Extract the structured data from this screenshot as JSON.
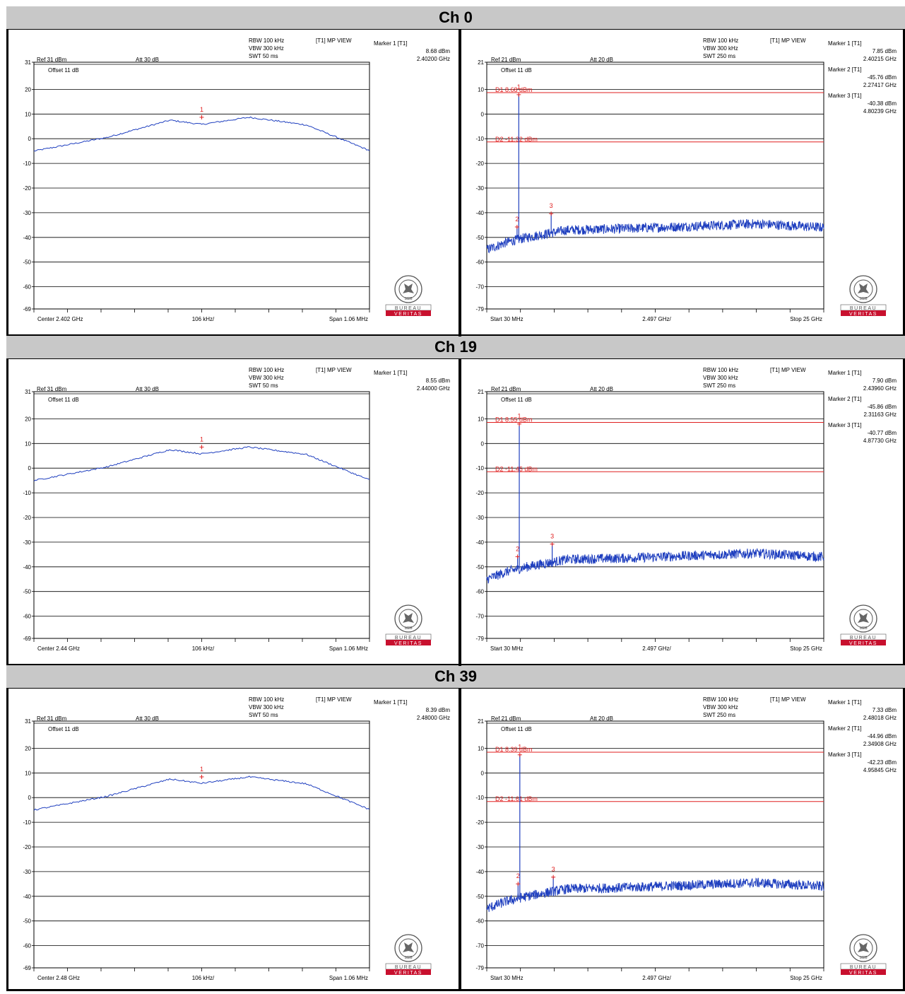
{
  "colors": {
    "trace": "#1f3fbf",
    "marker": "#e02020",
    "display_line": "#e02020",
    "header_bg": "#c8c8c8",
    "logo_red": "#c8102e"
  },
  "logo": {
    "text_top": "BUREAU",
    "text_bottom": "VERITAS",
    "year": "1828",
    "ring_text": "BUREAU VERITAS"
  },
  "rows": [
    {
      "title": "Ch 0"
    },
    {
      "title": "Ch 19"
    },
    {
      "title": "Ch 39"
    }
  ],
  "chart_data": [
    {
      "type": "line",
      "row": 0,
      "side": "left",
      "settings": {
        "rbw": "RBW 100 kHz",
        "vbw": "VBW 300 kHz",
        "swt": "SWT 50 ms",
        "view": "[T1] MP VIEW",
        "ref": "Ref 31 dBm",
        "att": "Att  30 dB",
        "offset": "Offset 11 dB"
      },
      "markers_text": [
        {
          "label": "Marker 1 [T1]",
          "level": "8.68 dBm",
          "freq": "2.40200 GHz"
        }
      ],
      "x_labels": {
        "left": "Center 2.402 GHz",
        "center": "106 kHz/",
        "right": "Span 1.06 MHz"
      },
      "y_ticks": [
        "31",
        "20",
        "10",
        "0",
        "-10",
        "-20",
        "-30",
        "-40",
        "-50",
        "-60",
        "-69"
      ],
      "y_tick_values": [
        31,
        20,
        10,
        0,
        -10,
        -20,
        -30,
        -40,
        -50,
        -60,
        -69
      ],
      "ylim": [
        -69,
        31
      ],
      "xlim": [
        2.40147,
        2.40253
      ],
      "grid": true,
      "series": [
        {
          "x": [
            2.40147,
            2.4017,
            2.4019,
            2.402,
            2.40215,
            2.40233,
            2.40253
          ],
          "y": [
            -5,
            0.5,
            7.5,
            5.8,
            8.68,
            5.6,
            -4.8
          ]
        }
      ],
      "plot_markers": [
        {
          "label": "1",
          "x": 2.402,
          "y": 8.68
        }
      ],
      "display_lines": []
    },
    {
      "type": "line",
      "row": 0,
      "side": "right",
      "settings": {
        "rbw": "RBW 100 kHz",
        "vbw": "VBW 300 kHz",
        "swt": "SWT 250 ms",
        "view": "[T1] MP VIEW",
        "ref": "Ref 21 dBm",
        "att": "Att  20 dB",
        "offset": "Offset 11 dB"
      },
      "markers_text": [
        {
          "label": "Marker 1 [T1]",
          "level": "7.85 dBm",
          "freq": "2.40215 GHz"
        },
        {
          "label": "Marker 2 [T1]",
          "level": "-45.76 dBm",
          "freq": "2.27417 GHz"
        },
        {
          "label": "Marker 3 [T1]",
          "level": "-40.38 dBm",
          "freq": "4.80239 GHz"
        }
      ],
      "x_labels": {
        "left": "Start 30 MHz",
        "center": "2.497 GHz/",
        "right": "Stop 25 GHz"
      },
      "y_ticks": [
        "21",
        "10",
        "0",
        "-10",
        "-20",
        "-30",
        "-40",
        "-50",
        "-60",
        "-70",
        "-79"
      ],
      "y_tick_values": [
        21,
        10,
        0,
        -10,
        -20,
        -30,
        -40,
        -50,
        -60,
        -70,
        -79
      ],
      "ylim": [
        -79,
        21
      ],
      "xlim": [
        0.03,
        25
      ],
      "grid": true,
      "noise_floor": {
        "x": [
          0.03,
          1.5,
          3,
          6,
          10,
          15,
          20,
          25
        ],
        "y": [
          -55,
          -52,
          -50,
          -47,
          -46.5,
          -45.5,
          -44.5,
          -46
        ]
      },
      "plot_markers": [
        {
          "label": "1",
          "x": 2.40215,
          "y": 7.85
        },
        {
          "label": "2",
          "x": 2.27417,
          "y": -45.76
        },
        {
          "label": "3",
          "x": 4.80239,
          "y": -40.38
        }
      ],
      "display_lines": [
        {
          "label": "D1 8.68 dBm",
          "y": 8.68
        },
        {
          "label": "D2 -11.32 dBm",
          "y": -11.32
        }
      ]
    },
    {
      "type": "line",
      "row": 1,
      "side": "left",
      "settings": {
        "rbw": "RBW 100 kHz",
        "vbw": "VBW 300 kHz",
        "swt": "SWT 50 ms",
        "view": "[T1] MP VIEW",
        "ref": "Ref 31 dBm",
        "att": "Att  30 dB",
        "offset": "Offset 11 dB"
      },
      "markers_text": [
        {
          "label": "Marker 1 [T1]",
          "level": "8.55 dBm",
          "freq": "2.44000 GHz"
        }
      ],
      "x_labels": {
        "left": "Center 2.44 GHz",
        "center": "106 kHz/",
        "right": "Span 1.06 MHz"
      },
      "y_ticks": [
        "31",
        "20",
        "10",
        "0",
        "-10",
        "-20",
        "-30",
        "-40",
        "-50",
        "-60",
        "-69"
      ],
      "y_tick_values": [
        31,
        20,
        10,
        0,
        -10,
        -20,
        -30,
        -40,
        -50,
        -60,
        -69
      ],
      "ylim": [
        -69,
        31
      ],
      "xlim": [
        2.43947,
        2.44053
      ],
      "grid": true,
      "series": [
        {
          "x": [
            2.43947,
            2.4397,
            2.4399,
            2.44,
            2.44015,
            2.44033,
            2.44053
          ],
          "y": [
            -5,
            0.5,
            7.5,
            5.8,
            8.55,
            5.6,
            -4.8
          ]
        }
      ],
      "plot_markers": [
        {
          "label": "1",
          "x": 2.44,
          "y": 8.55
        }
      ],
      "display_lines": []
    },
    {
      "type": "line",
      "row": 1,
      "side": "right",
      "settings": {
        "rbw": "RBW 100 kHz",
        "vbw": "VBW 300 kHz",
        "swt": "SWT 250 ms",
        "view": "[T1] MP VIEW",
        "ref": "Ref 21 dBm",
        "att": "Att  20 dB",
        "offset": "Offset 11 dB"
      },
      "markers_text": [
        {
          "label": "Marker 1 [T1]",
          "level": "7.90 dBm",
          "freq": "2.43960 GHz"
        },
        {
          "label": "Marker 2 [T1]",
          "level": "-45.86 dBm",
          "freq": "2.31163 GHz"
        },
        {
          "label": "Marker 3 [T1]",
          "level": "-40.77 dBm",
          "freq": "4.87730 GHz"
        }
      ],
      "x_labels": {
        "left": "Start 30 MHz",
        "center": "2.497 GHz/",
        "right": "Stop 25 GHz"
      },
      "y_ticks": [
        "21",
        "10",
        "0",
        "-10",
        "-20",
        "-30",
        "-40",
        "-50",
        "-60",
        "-70",
        "-79"
      ],
      "y_tick_values": [
        21,
        10,
        0,
        -10,
        -20,
        -30,
        -40,
        -50,
        -60,
        -70,
        -79
      ],
      "ylim": [
        -79,
        21
      ],
      "xlim": [
        0.03,
        25
      ],
      "grid": true,
      "noise_floor": {
        "x": [
          0.03,
          1.5,
          3,
          6,
          10,
          15,
          20,
          25
        ],
        "y": [
          -55,
          -52,
          -50,
          -47,
          -46.5,
          -45.5,
          -44.5,
          -46
        ]
      },
      "plot_markers": [
        {
          "label": "1",
          "x": 2.4396,
          "y": 7.9
        },
        {
          "label": "2",
          "x": 2.31163,
          "y": -45.86
        },
        {
          "label": "3",
          "x": 4.8773,
          "y": -40.77
        }
      ],
      "display_lines": [
        {
          "label": "D1 8.55 dBm",
          "y": 8.55
        },
        {
          "label": "D2 -11.45 dBm",
          "y": -11.45
        }
      ]
    },
    {
      "type": "line",
      "row": 2,
      "side": "left",
      "settings": {
        "rbw": "RBW 100 kHz",
        "vbw": "VBW 300 kHz",
        "swt": "SWT 50 ms",
        "view": "[T1] MP VIEW",
        "ref": "Ref 31 dBm",
        "att": "Att  30 dB",
        "offset": "Offset 11 dB"
      },
      "markers_text": [
        {
          "label": "Marker 1 [T1]",
          "level": "8.39 dBm",
          "freq": "2.48000 GHz"
        }
      ],
      "x_labels": {
        "left": "Center 2.48 GHz",
        "center": "106 kHz/",
        "right": "Span 1.06 MHz"
      },
      "y_ticks": [
        "31",
        "20",
        "10",
        "0",
        "-10",
        "-20",
        "-30",
        "-40",
        "-50",
        "-60",
        "-69"
      ],
      "y_tick_values": [
        31,
        20,
        10,
        0,
        -10,
        -20,
        -30,
        -40,
        -50,
        -60,
        -69
      ],
      "ylim": [
        -69,
        31
      ],
      "xlim": [
        2.47947,
        2.48053
      ],
      "grid": true,
      "series": [
        {
          "x": [
            2.47947,
            2.4797,
            2.4799,
            2.48,
            2.48015,
            2.48033,
            2.48053
          ],
          "y": [
            -5,
            0.5,
            7.5,
            5.8,
            8.39,
            5.6,
            -4.8
          ]
        }
      ],
      "plot_markers": [
        {
          "label": "1",
          "x": 2.48,
          "y": 8.39
        }
      ],
      "display_lines": []
    },
    {
      "type": "line",
      "row": 2,
      "side": "right",
      "settings": {
        "rbw": "RBW 100 kHz",
        "vbw": "VBW 300 kHz",
        "swt": "SWT 250 ms",
        "view": "[T1] MP VIEW",
        "ref": "Ref 21 dBm",
        "att": "Att  20 dB",
        "offset": "Offset 11 dB"
      },
      "markers_text": [
        {
          "label": "Marker 1 [T1]",
          "level": "7.33 dBm",
          "freq": "2.48018 GHz"
        },
        {
          "label": "Marker 2 [T1]",
          "level": "-44.96 dBm",
          "freq": "2.34908 GHz"
        },
        {
          "label": "Marker 3 [T1]",
          "level": "-42.23 dBm",
          "freq": "4.95845 GHz"
        }
      ],
      "x_labels": {
        "left": "Start 30 MHz",
        "center": "2.497 GHz/",
        "right": "Stop 25 GHz"
      },
      "y_ticks": [
        "21",
        "10",
        "0",
        "-10",
        "-20",
        "-30",
        "-40",
        "-50",
        "-60",
        "-70",
        "-79"
      ],
      "y_tick_values": [
        21,
        10,
        0,
        -10,
        -20,
        -30,
        -40,
        -50,
        -60,
        -70,
        -79
      ],
      "ylim": [
        -79,
        21
      ],
      "xlim": [
        0.03,
        25
      ],
      "grid": true,
      "noise_floor": {
        "x": [
          0.03,
          1.5,
          3,
          6,
          10,
          15,
          20,
          25
        ],
        "y": [
          -55,
          -52,
          -50,
          -47,
          -46.5,
          -45.5,
          -44.5,
          -46
        ]
      },
      "plot_markers": [
        {
          "label": "1",
          "x": 2.48018,
          "y": 7.33
        },
        {
          "label": "2",
          "x": 2.34908,
          "y": -44.96
        },
        {
          "label": "3",
          "x": 4.95845,
          "y": -42.23
        }
      ],
      "display_lines": [
        {
          "label": "D1 8.39 dBm",
          "y": 8.39
        },
        {
          "label": "D2 -11.61 dBm",
          "y": -11.61
        }
      ]
    }
  ]
}
